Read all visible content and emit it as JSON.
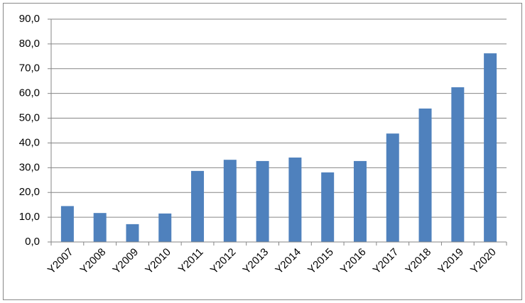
{
  "chart_data": {
    "type": "bar",
    "categories": [
      "Y2007",
      "Y2008",
      "Y2009",
      "Y2010",
      "Y2011",
      "Y2012",
      "Y2013",
      "Y2014",
      "Y2015",
      "Y2016",
      "Y2017",
      "Y2018",
      "Y2019",
      "Y2020"
    ],
    "values": [
      14.5,
      11.7,
      7.2,
      11.5,
      28.7,
      33.2,
      32.7,
      34.1,
      28.1,
      32.7,
      43.8,
      53.9,
      62.5,
      76.2
    ],
    "color": "#4f81bd",
    "ylim": [
      0,
      90
    ],
    "yticks": [
      {
        "value": 0,
        "label": "0,0"
      },
      {
        "value": 10,
        "label": "10,0"
      },
      {
        "value": 20,
        "label": "20,0"
      },
      {
        "value": 30,
        "label": "30,0"
      },
      {
        "value": 40,
        "label": "40,0"
      },
      {
        "value": 50,
        "label": "50,0"
      },
      {
        "value": 60,
        "label": "60,0"
      },
      {
        "value": 70,
        "label": "70,0"
      },
      {
        "value": 80,
        "label": "80,0"
      },
      {
        "value": 90,
        "label": "90,0"
      }
    ],
    "grid": true
  }
}
